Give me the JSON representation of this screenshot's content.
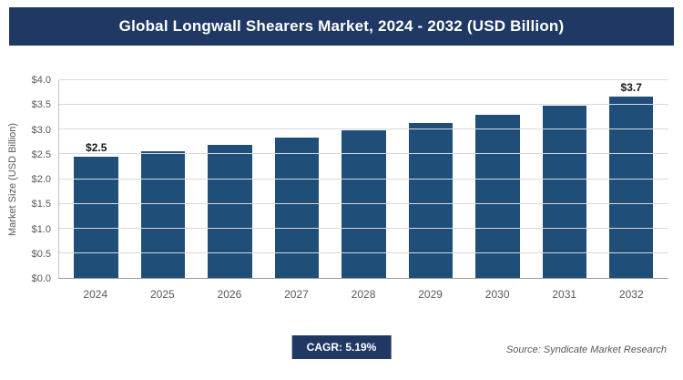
{
  "header": {
    "title": "Global Longwall Shearers Market, 2024 - 2032 (USD Billion)"
  },
  "colors": {
    "header_bg": "#203864",
    "bar": "#1f4e79",
    "badge_bg": "#203864",
    "gridline": "#d9d9d9",
    "axis_text": "#595959"
  },
  "chart_data": {
    "type": "bar",
    "title": "Global Longwall Shearers Market, 2024 - 2032 (USD Billion)",
    "categories": [
      "2024",
      "2025",
      "2026",
      "2027",
      "2028",
      "2029",
      "2030",
      "2031",
      "2032"
    ],
    "values": [
      2.45,
      2.57,
      2.7,
      2.84,
      2.99,
      3.14,
      3.3,
      3.48,
      3.66
    ],
    "data_labels": [
      "$2.5",
      "",
      "",
      "",
      "",
      "",
      "",
      "",
      "$3.7"
    ],
    "xlabel": "",
    "ylabel": "Market Size (USD Billion)",
    "ylim": [
      0,
      4
    ],
    "ytick_step": 0.5,
    "ytick_labels": [
      "$0.0",
      "$0.5",
      "$1.0",
      "$1.5",
      "$2.0",
      "$2.5",
      "$3.0",
      "$3.5",
      "$4.0"
    ],
    "grid": true,
    "legend": "none",
    "bar_color": "#1f4e79"
  },
  "footer": {
    "cagr_label": "CAGR: 5.19%",
    "source": "Source: Syndicate Market Research"
  }
}
